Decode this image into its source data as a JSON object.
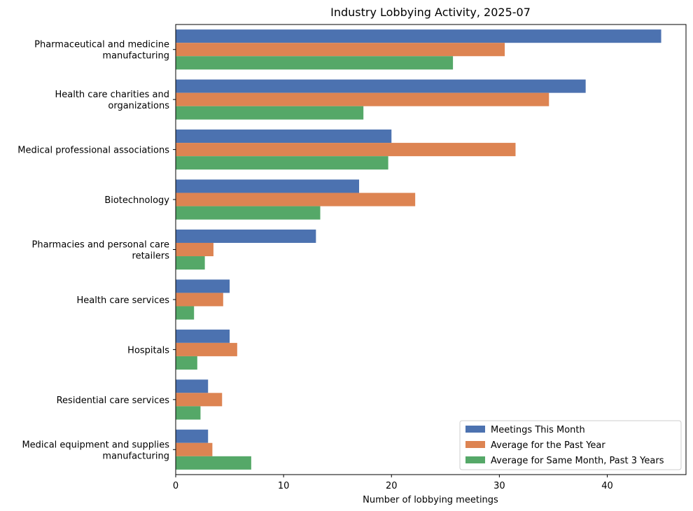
{
  "chart_data": {
    "type": "bar",
    "orientation": "horizontal",
    "title": "Industry Lobbying Activity, 2025-07",
    "xlabel": "Number of lobbying meetings",
    "ylabel": "",
    "xlim": [
      0,
      47.3
    ],
    "xticks": [
      0,
      10,
      20,
      30,
      40
    ],
    "grid": false,
    "legend_position": "bottom-right",
    "categories": [
      [
        "Pharmaceutical and medicine",
        "manufacturing"
      ],
      [
        "Health care charities and",
        "organizations"
      ],
      [
        "Medical professional associations"
      ],
      [
        "Biotechnology"
      ],
      [
        "Pharmacies and personal care",
        "retailers"
      ],
      [
        "Health care services"
      ],
      [
        "Hospitals"
      ],
      [
        "Residential care services"
      ],
      [
        "Medical equipment and supplies",
        "manufacturing"
      ]
    ],
    "series": [
      {
        "name": "Meetings This Month",
        "color": "#4c72b0",
        "values": [
          45,
          38,
          20,
          17,
          13,
          5,
          5,
          3,
          3
        ]
      },
      {
        "name": "Average for the Past Year",
        "color": "#dd8452",
        "values": [
          30.5,
          34.6,
          31.5,
          22.2,
          3.5,
          4.4,
          5.7,
          4.3,
          3.4
        ]
      },
      {
        "name": "Average for Same Month, Past 3 Years",
        "color": "#55a868",
        "values": [
          25.7,
          17.4,
          19.7,
          13.4,
          2.7,
          1.7,
          2.0,
          2.3,
          7.0
        ]
      }
    ]
  }
}
